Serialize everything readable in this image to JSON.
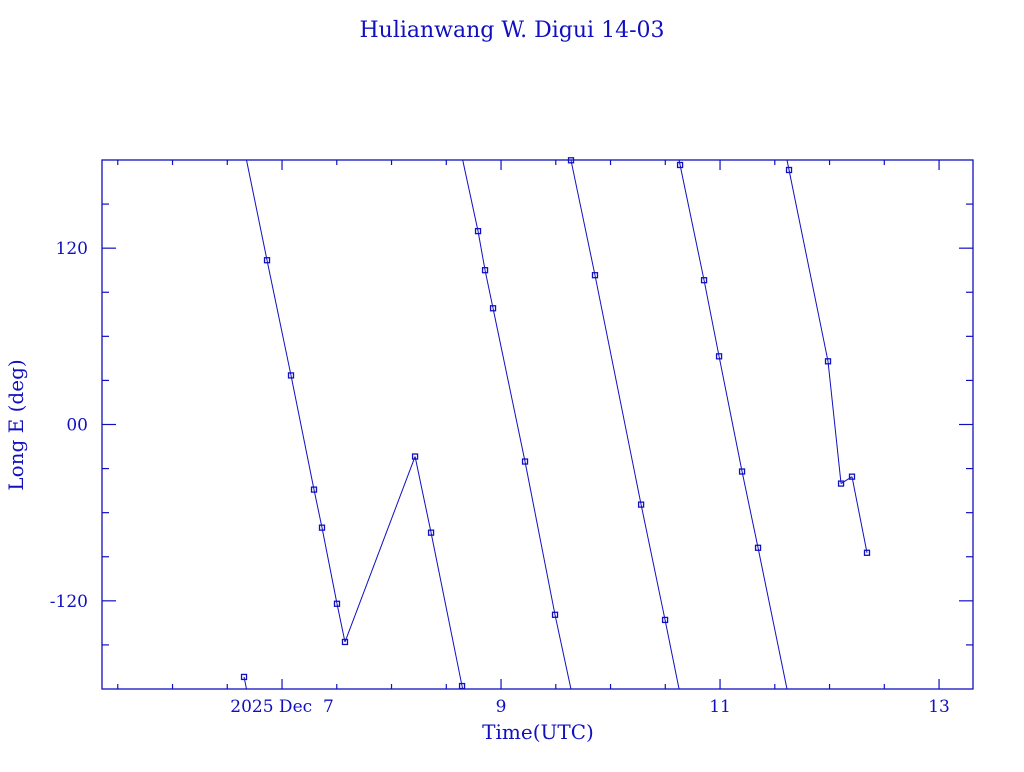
{
  "chart_data": {
    "type": "line",
    "title": "Hulianwang W. Digui 14-03",
    "xlabel": "Time(UTC)",
    "ylabel": "Long E (deg)",
    "xlim": [
      5.356,
      13.31
    ],
    "ylim": [
      -180,
      180
    ],
    "x_ticks": [
      {
        "value": 7,
        "label": "2025 Dec  7"
      },
      {
        "value": 9,
        "label": "9"
      },
      {
        "value": 11,
        "label": "11"
      },
      {
        "value": 13,
        "label": "13"
      }
    ],
    "y_ticks": [
      {
        "value": 120,
        "label": "120"
      },
      {
        "value": 0,
        "label": "00"
      },
      {
        "value": -120,
        "label": "-120"
      }
    ],
    "x_minor_step": 0.5,
    "y_minor_step": 30,
    "grid": false,
    "wraps_longitude": true,
    "color": "#1010c0",
    "x_unit": "day of December 2025 (UTC)",
    "points": [
      [
        6.653,
        -171.8
      ],
      [
        6.863,
        111.8
      ],
      [
        7.082,
        33.4
      ],
      [
        7.292,
        -44.3
      ],
      [
        7.365,
        -70.2
      ],
      [
        7.502,
        -122
      ],
      [
        7.575,
        -148
      ],
      [
        8.215,
        -21.8
      ],
      [
        8.361,
        -73.6
      ],
      [
        8.644,
        -178
      ],
      [
        8.79,
        131.6
      ],
      [
        8.854,
        105
      ],
      [
        8.927,
        79.1
      ],
      [
        9.219,
        -25.2
      ],
      [
        9.493,
        -129.5
      ],
      [
        9.639,
        179.8
      ],
      [
        9.858,
        101.6
      ],
      [
        10.279,
        -54.5
      ],
      [
        10.498,
        -133
      ],
      [
        10.635,
        176.6
      ],
      [
        10.854,
        98.2
      ],
      [
        10.991,
        46.4
      ],
      [
        11.201,
        -32
      ],
      [
        11.347,
        -83.9
      ],
      [
        11.63,
        173.2
      ],
      [
        11.986,
        43
      ],
      [
        12.105,
        -40.2
      ],
      [
        12.205,
        -35.5
      ],
      [
        12.342,
        -87.3
      ]
    ]
  }
}
